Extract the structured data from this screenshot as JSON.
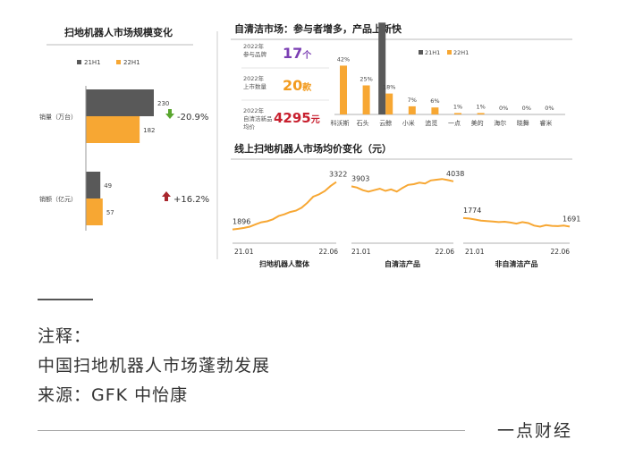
{
  "left_panel": {
    "title": "扫地机器人市场规模变化",
    "legend": [
      "21H1",
      "22H1"
    ],
    "rows": [
      {
        "label": "销量（万台）",
        "values": [
          230,
          182
        ],
        "change": "-20.9%",
        "direction": "down"
      },
      {
        "label": "销额（亿元）",
        "values": [
          49,
          57
        ],
        "change": "+16.2%",
        "direction": "up"
      }
    ]
  },
  "top_right": {
    "title": "自清洁市场：参与者增多，产品上新快",
    "kpis": [
      {
        "label_lines": [
          "2022年",
          "参与品牌"
        ],
        "value": "17个",
        "color": "#7b3fb3"
      },
      {
        "label_lines": [
          "2022年",
          "上市数量"
        ],
        "value": "20款",
        "color": "#f29b1f"
      },
      {
        "label_lines": [
          "2022年",
          "自清洁新品",
          "均价"
        ],
        "value": "4295元",
        "color": "#c8202f"
      }
    ],
    "legend": [
      "21H1",
      "22H1"
    ]
  },
  "bottom_right": {
    "title": "线上扫地机器人市场均价变化（元）",
    "labels": [
      "扫地机器人整体",
      "自清洁产品",
      "非自清洁产品"
    ]
  },
  "notes": {
    "heading": "注释：",
    "line1": "中国扫地机器人市场蓬勃发展",
    "line2": "来源：GFK 中怡康"
  },
  "footer": {
    "brand": "一点财经"
  },
  "colors": {
    "series_21h1": "#595959",
    "series_22h1": "#f7a733",
    "line": "#f7a733",
    "down_arrow": "#5aa62f",
    "up_arrow": "#a8262c"
  },
  "chart_data": [
    {
      "type": "bar",
      "title": "扫地机器人市场规模变化",
      "categories": [
        "销量（万台）",
        "销额（亿元）"
      ],
      "series": [
        {
          "name": "21H1",
          "values": [
            230,
            49
          ]
        },
        {
          "name": "22H1",
          "values": [
            182,
            57
          ]
        }
      ],
      "annotations": [
        "-20.9%",
        "+16.2%"
      ]
    },
    {
      "type": "bar",
      "title": "自清洁市场：参与者增多，产品上新快",
      "categories": [
        "科沃斯",
        "石头",
        "云鲸",
        "小米",
        "追觅",
        "一点",
        "美的",
        "海尔",
        "晓舞",
        "睿米"
      ],
      "series": [
        {
          "name": "21H1",
          "values": [
            null,
            null,
            79,
            null,
            null,
            null,
            null,
            null,
            null,
            null
          ]
        },
        {
          "name": "22H1",
          "values": [
            42,
            25,
            18,
            7,
            6,
            1,
            1,
            0,
            0,
            0
          ]
        }
      ],
      "data_labels": [
        "42%",
        "25%",
        "18%",
        "7%",
        "6%",
        "1%",
        "1%",
        "0%",
        "0%",
        "0%"
      ]
    },
    {
      "type": "line",
      "title": "线上扫地机器人市场均价变化（元）",
      "series": [
        {
          "name": "扫地机器人整体",
          "x_range": [
            "21.01",
            "22.06"
          ],
          "values": [
            1896,
            1915,
            1940,
            1980,
            2050,
            2110,
            2140,
            2200,
            2300,
            2350,
            2420,
            2460,
            2550,
            2700,
            2880,
            2950,
            3050,
            3200,
            3322
          ]
        },
        {
          "name": "自清洁产品",
          "x_range": [
            "21.01",
            "22.06"
          ],
          "values": [
            3903,
            3870,
            3800,
            3760,
            3800,
            3840,
            3780,
            3820,
            3760,
            3860,
            3940,
            3960,
            4000,
            3980,
            4060,
            4080,
            4100,
            4070,
            4038
          ]
        },
        {
          "name": "非自清洁产品",
          "x_range": [
            "21.01",
            "22.06"
          ],
          "values": [
            1774,
            1770,
            1760,
            1750,
            1745,
            1740,
            1735,
            1738,
            1730,
            1720,
            1735,
            1725,
            1700,
            1690,
            1705,
            1698,
            1695,
            1700,
            1691
          ]
        }
      ],
      "point_labels": [
        [
          "1896",
          "3322"
        ],
        [
          "3903",
          "4038"
        ],
        [
          "1774",
          "1691"
        ]
      ],
      "xlabels": [
        [
          "21.01",
          "22.06"
        ],
        [
          "21.01",
          "22.06"
        ],
        [
          "21.01",
          "22.06"
        ]
      ]
    }
  ]
}
